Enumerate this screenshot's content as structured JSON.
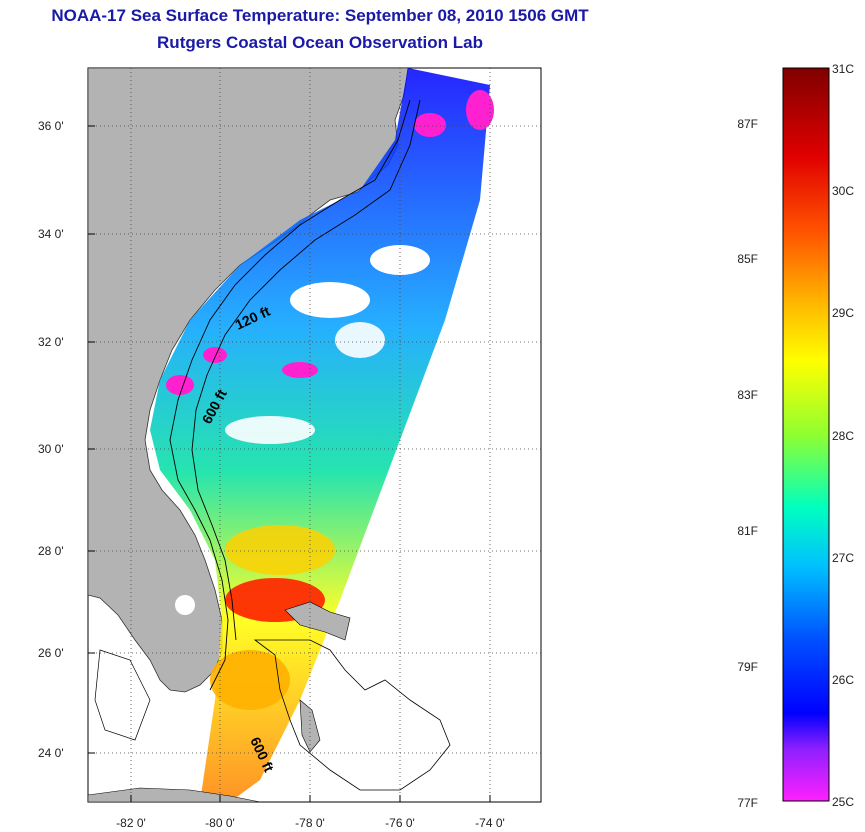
{
  "header": {
    "title": "NOAA-17 Sea Surface Temperature:  September 08, 2010 1506 GMT",
    "subtitle": "Rutgers Coastal Ocean Observation Lab"
  },
  "map": {
    "lat_labels": [
      "36 0'",
      "34 0'",
      "32 0'",
      "30 0'",
      "28 0'",
      "26 0'",
      "24 0'"
    ],
    "lon_labels": [
      "-82 0'",
      "-80 0'",
      "-78 0'",
      "-76 0'",
      "-74 0'"
    ],
    "isobath_labels": [
      "120 ft",
      "600 ft",
      "600 ft"
    ],
    "land_color": "#b3b3b3",
    "ocean_color": "#ffffff"
  },
  "colorbar": {
    "fahrenheit_labels": [
      "87F",
      "85F",
      "83F",
      "81F",
      "79F",
      "77F"
    ],
    "celsius_labels": [
      "31C",
      "30C",
      "29C",
      "28C",
      "27C",
      "26C",
      "25C"
    ],
    "colors": [
      "#800000",
      "#ff0000",
      "#ff8000",
      "#ffff00",
      "#80ff00",
      "#00ffff",
      "#0080ff",
      "#0000ff",
      "#8000ff",
      "#ff00ff"
    ]
  }
}
